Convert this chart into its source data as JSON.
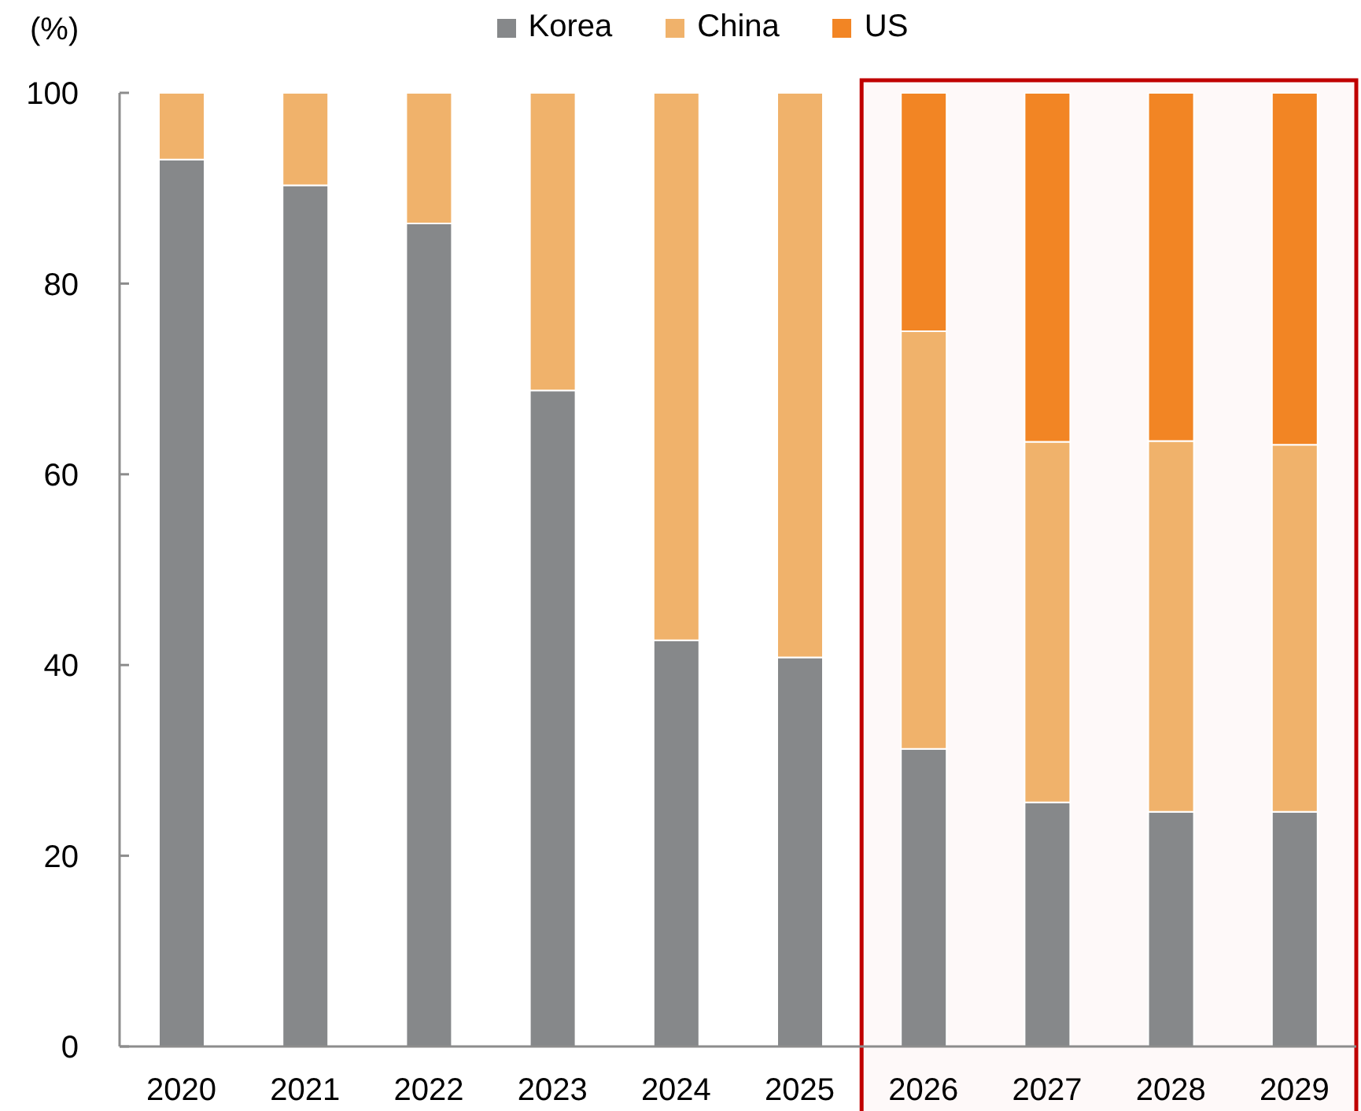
{
  "chart_data": {
    "type": "bar",
    "stacked": true,
    "ylabel": "(%)",
    "legend": "top",
    "categories": [
      "2020",
      "2021",
      "2022",
      "2023",
      "2024",
      "2025",
      "2026",
      "2027",
      "2028",
      "2029"
    ],
    "series": [
      {
        "name": "Korea",
        "color": "#86888a",
        "values": [
          93,
          90.3,
          86.3,
          68.8,
          42.6,
          40.8,
          31.2,
          25.6,
          24.6,
          24.6
        ]
      },
      {
        "name": "China",
        "color": "#f0b26b",
        "values": [
          7,
          9.7,
          13.7,
          31.2,
          57.4,
          59.2,
          43.8,
          37.8,
          38.9,
          38.5
        ]
      },
      {
        "name": "US",
        "color": "#f28524",
        "values": [
          null,
          null,
          null,
          null,
          null,
          null,
          25,
          36.6,
          36.5,
          36.9
        ]
      }
    ],
    "ylim": [
      0,
      100
    ],
    "yticks": [
      0,
      20,
      40,
      60,
      80,
      100
    ],
    "bands": [
      {
        "axis": "x",
        "from": "2026",
        "to": "2029",
        "color": "#c00000"
      }
    ]
  }
}
